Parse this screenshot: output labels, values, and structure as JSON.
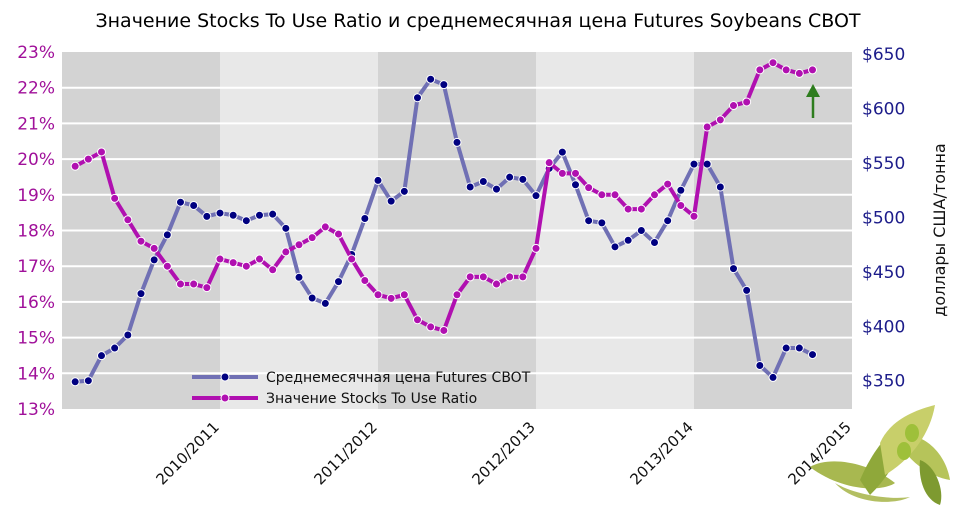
{
  "chart_data": {
    "type": "line",
    "title": "Значение Stocks To Use Ratio и среднемесячная цена Futures Soybeans CBOT",
    "xlabel": "",
    "ylabel_left": "",
    "ylabel_right": "доллары США/тонна",
    "xlim": [
      0,
      60
    ],
    "ylim_left": [
      13,
      23
    ],
    "ylim_right": [
      324,
      652
    ],
    "grid": true,
    "legend_position": "bottom-left",
    "x_tick_values": [
      12,
      24,
      36,
      48,
      60
    ],
    "x_tick_labels": [
      "2010/2011",
      "2011/2012",
      "2012/2013",
      "2013/2014",
      "2014/2015"
    ],
    "left_tick_values": [
      13,
      14,
      15,
      16,
      17,
      18,
      19,
      20,
      21,
      22,
      23
    ],
    "left_tick_labels": [
      "13%",
      "14%",
      "15%",
      "16%",
      "17%",
      "18%",
      "19%",
      "20%",
      "21%",
      "22%",
      "23%"
    ],
    "right_tick_values": [
      350,
      400,
      450,
      500,
      550,
      600,
      650
    ],
    "right_tick_labels": [
      "$350",
      "$400",
      "$450",
      "$500",
      "$550",
      "$600",
      "$650"
    ],
    "x": [
      1,
      2,
      3,
      4,
      5,
      6,
      7,
      8,
      9,
      10,
      11,
      12,
      13,
      14,
      15,
      16,
      17,
      18,
      19,
      20,
      21,
      22,
      23,
      24,
      25,
      26,
      27,
      28,
      29,
      30,
      31,
      32,
      33,
      34,
      35,
      36,
      37,
      38,
      39,
      40,
      41,
      42,
      43,
      44,
      45,
      46,
      47,
      48,
      49,
      50,
      51,
      52,
      53,
      54,
      55,
      56,
      57
    ],
    "series": [
      {
        "name": "Среднемесячная цена Futures CBOT",
        "axis": "right",
        "color": "#7070b4",
        "marker_color": "#000080",
        "values": [
          349,
          350,
          373,
          380,
          392,
          430,
          461,
          484,
          514,
          511,
          501,
          504,
          502,
          497,
          502,
          503,
          490,
          445,
          426,
          421,
          441,
          466,
          499,
          534,
          515,
          524,
          610,
          627,
          622,
          569,
          528,
          533,
          526,
          537,
          535,
          520,
          545,
          560,
          530,
          497,
          495,
          473,
          479,
          488,
          477,
          497,
          525,
          549,
          549,
          528,
          453,
          433,
          364,
          353,
          380,
          380,
          374
        ]
      },
      {
        "name": "Значение Stocks To Use Ratio",
        "axis": "left",
        "color": "#b010b0",
        "marker_color": "#b010b0",
        "values": [
          19.8,
          20.0,
          20.2,
          18.9,
          18.3,
          17.7,
          17.5,
          17.0,
          16.5,
          16.5,
          16.4,
          17.2,
          17.1,
          17.0,
          17.2,
          16.9,
          17.4,
          17.6,
          17.8,
          18.1,
          17.9,
          17.2,
          16.6,
          16.2,
          16.1,
          16.2,
          15.5,
          15.3,
          15.2,
          16.2,
          16.7,
          16.7,
          16.5,
          16.7,
          16.7,
          17.5,
          19.9,
          19.6,
          19.6,
          19.2,
          19.0,
          19.0,
          18.6,
          18.6,
          19.0,
          19.3,
          18.7,
          18.4,
          20.9,
          21.1,
          21.5,
          21.6,
          22.5,
          22.7,
          22.5,
          22.4,
          22.5
        ]
      }
    ],
    "annotation": "green-up-arrow"
  },
  "colors": {
    "band_dark": "#d3d3d3",
    "band_light": "#e8e8e8",
    "arrow": "#2e7d1e"
  }
}
